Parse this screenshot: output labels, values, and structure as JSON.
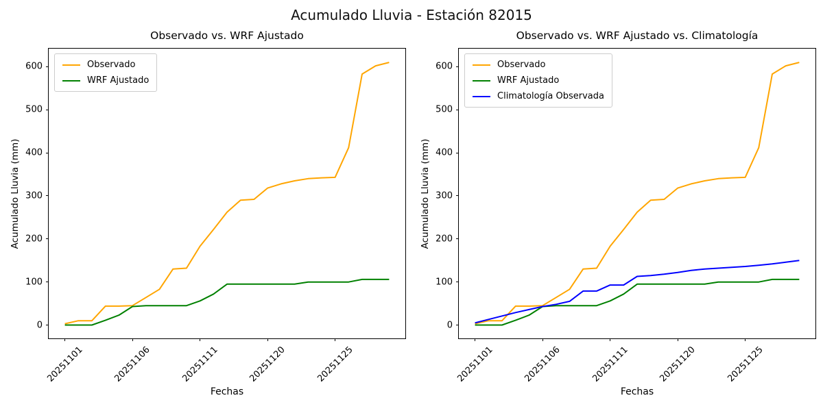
{
  "figure": {
    "suptitle": "Acumulado Lluvia - Estación 82015",
    "background": "#ffffff"
  },
  "colors": {
    "observado": "#FFA500",
    "wrf_ajustado": "#008000",
    "climatologia": "#0000FF",
    "spine": "#000000",
    "legend_border": "#cccccc"
  },
  "chart_data": [
    {
      "type": "line",
      "title": "Observado vs. WRF Ajustado",
      "xlabel": "Fechas",
      "ylabel": "Acumulado Lluvia (mm)",
      "x": [
        "20251101",
        "20251102",
        "20251103",
        "20251104",
        "20251105",
        "20251106",
        "20251107",
        "20251108",
        "20251109",
        "20251110",
        "20251111",
        "20251112",
        "20251113",
        "20251118",
        "20251119",
        "20251120",
        "20251121",
        "20251122",
        "20251123",
        "20251124",
        "20251125",
        "20251126",
        "20251127",
        "20251128",
        "20251129"
      ],
      "series": [
        {
          "name": "Observado",
          "color": "#FFA500",
          "values": [
            3,
            10,
            10,
            44,
            44,
            45,
            64,
            83,
            130,
            132,
            183,
            222,
            262,
            290,
            292,
            318,
            328,
            335,
            340,
            342,
            343,
            412,
            583,
            602,
            610
          ]
        },
        {
          "name": "WRF Ajustado",
          "color": "#008000",
          "values": [
            0,
            0,
            0,
            11,
            23,
            43,
            45,
            45,
            45,
            45,
            56,
            72,
            95,
            95,
            95,
            95,
            95,
            95,
            100,
            100,
            100,
            100,
            106,
            106,
            106
          ]
        }
      ],
      "yticks": [
        0,
        100,
        200,
        300,
        400,
        500,
        600
      ],
      "xtick_indices": [
        0,
        5,
        10,
        15,
        20
      ],
      "xtick_labels": [
        "20251101",
        "20251106",
        "20251111",
        "20251120",
        "20251125"
      ],
      "ylim": [
        -31,
        642
      ],
      "grid": false,
      "legend_position": "upper left"
    },
    {
      "type": "line",
      "title": "Observado vs. WRF Ajustado vs. Climatología",
      "xlabel": "Fechas",
      "ylabel": "Acumulado Lluvia (mm)",
      "x": [
        "20251101",
        "20251102",
        "20251103",
        "20251104",
        "20251105",
        "20251106",
        "20251107",
        "20251108",
        "20251109",
        "20251110",
        "20251111",
        "20251112",
        "20251113",
        "20251118",
        "20251119",
        "20251120",
        "20251121",
        "20251122",
        "20251123",
        "20251124",
        "20251125",
        "20251126",
        "20251127",
        "20251128",
        "20251129"
      ],
      "series": [
        {
          "name": "Observado",
          "color": "#FFA500",
          "values": [
            3,
            10,
            10,
            44,
            44,
            45,
            64,
            83,
            130,
            132,
            183,
            222,
            262,
            290,
            292,
            318,
            328,
            335,
            340,
            342,
            343,
            412,
            583,
            602,
            610
          ]
        },
        {
          "name": "WRF Ajustado",
          "color": "#008000",
          "values": [
            0,
            0,
            0,
            11,
            23,
            43,
            45,
            45,
            45,
            45,
            56,
            72,
            95,
            95,
            95,
            95,
            95,
            95,
            100,
            100,
            100,
            100,
            106,
            106,
            106
          ]
        },
        {
          "name": "Climatología Observada",
          "color": "#0000FF",
          "values": [
            5,
            13,
            21,
            29,
            36,
            43,
            48,
            55,
            79,
            79,
            93,
            93,
            113,
            115,
            118,
            122,
            127,
            130,
            132,
            134,
            136,
            139,
            142,
            146,
            150
          ]
        }
      ],
      "yticks": [
        0,
        100,
        200,
        300,
        400,
        500,
        600
      ],
      "xtick_indices": [
        0,
        5,
        10,
        15,
        20
      ],
      "xtick_labels": [
        "20251101",
        "20251106",
        "20251111",
        "20251120",
        "20251125"
      ],
      "ylim": [
        -31,
        642
      ],
      "grid": false,
      "legend_position": "upper left"
    }
  ]
}
